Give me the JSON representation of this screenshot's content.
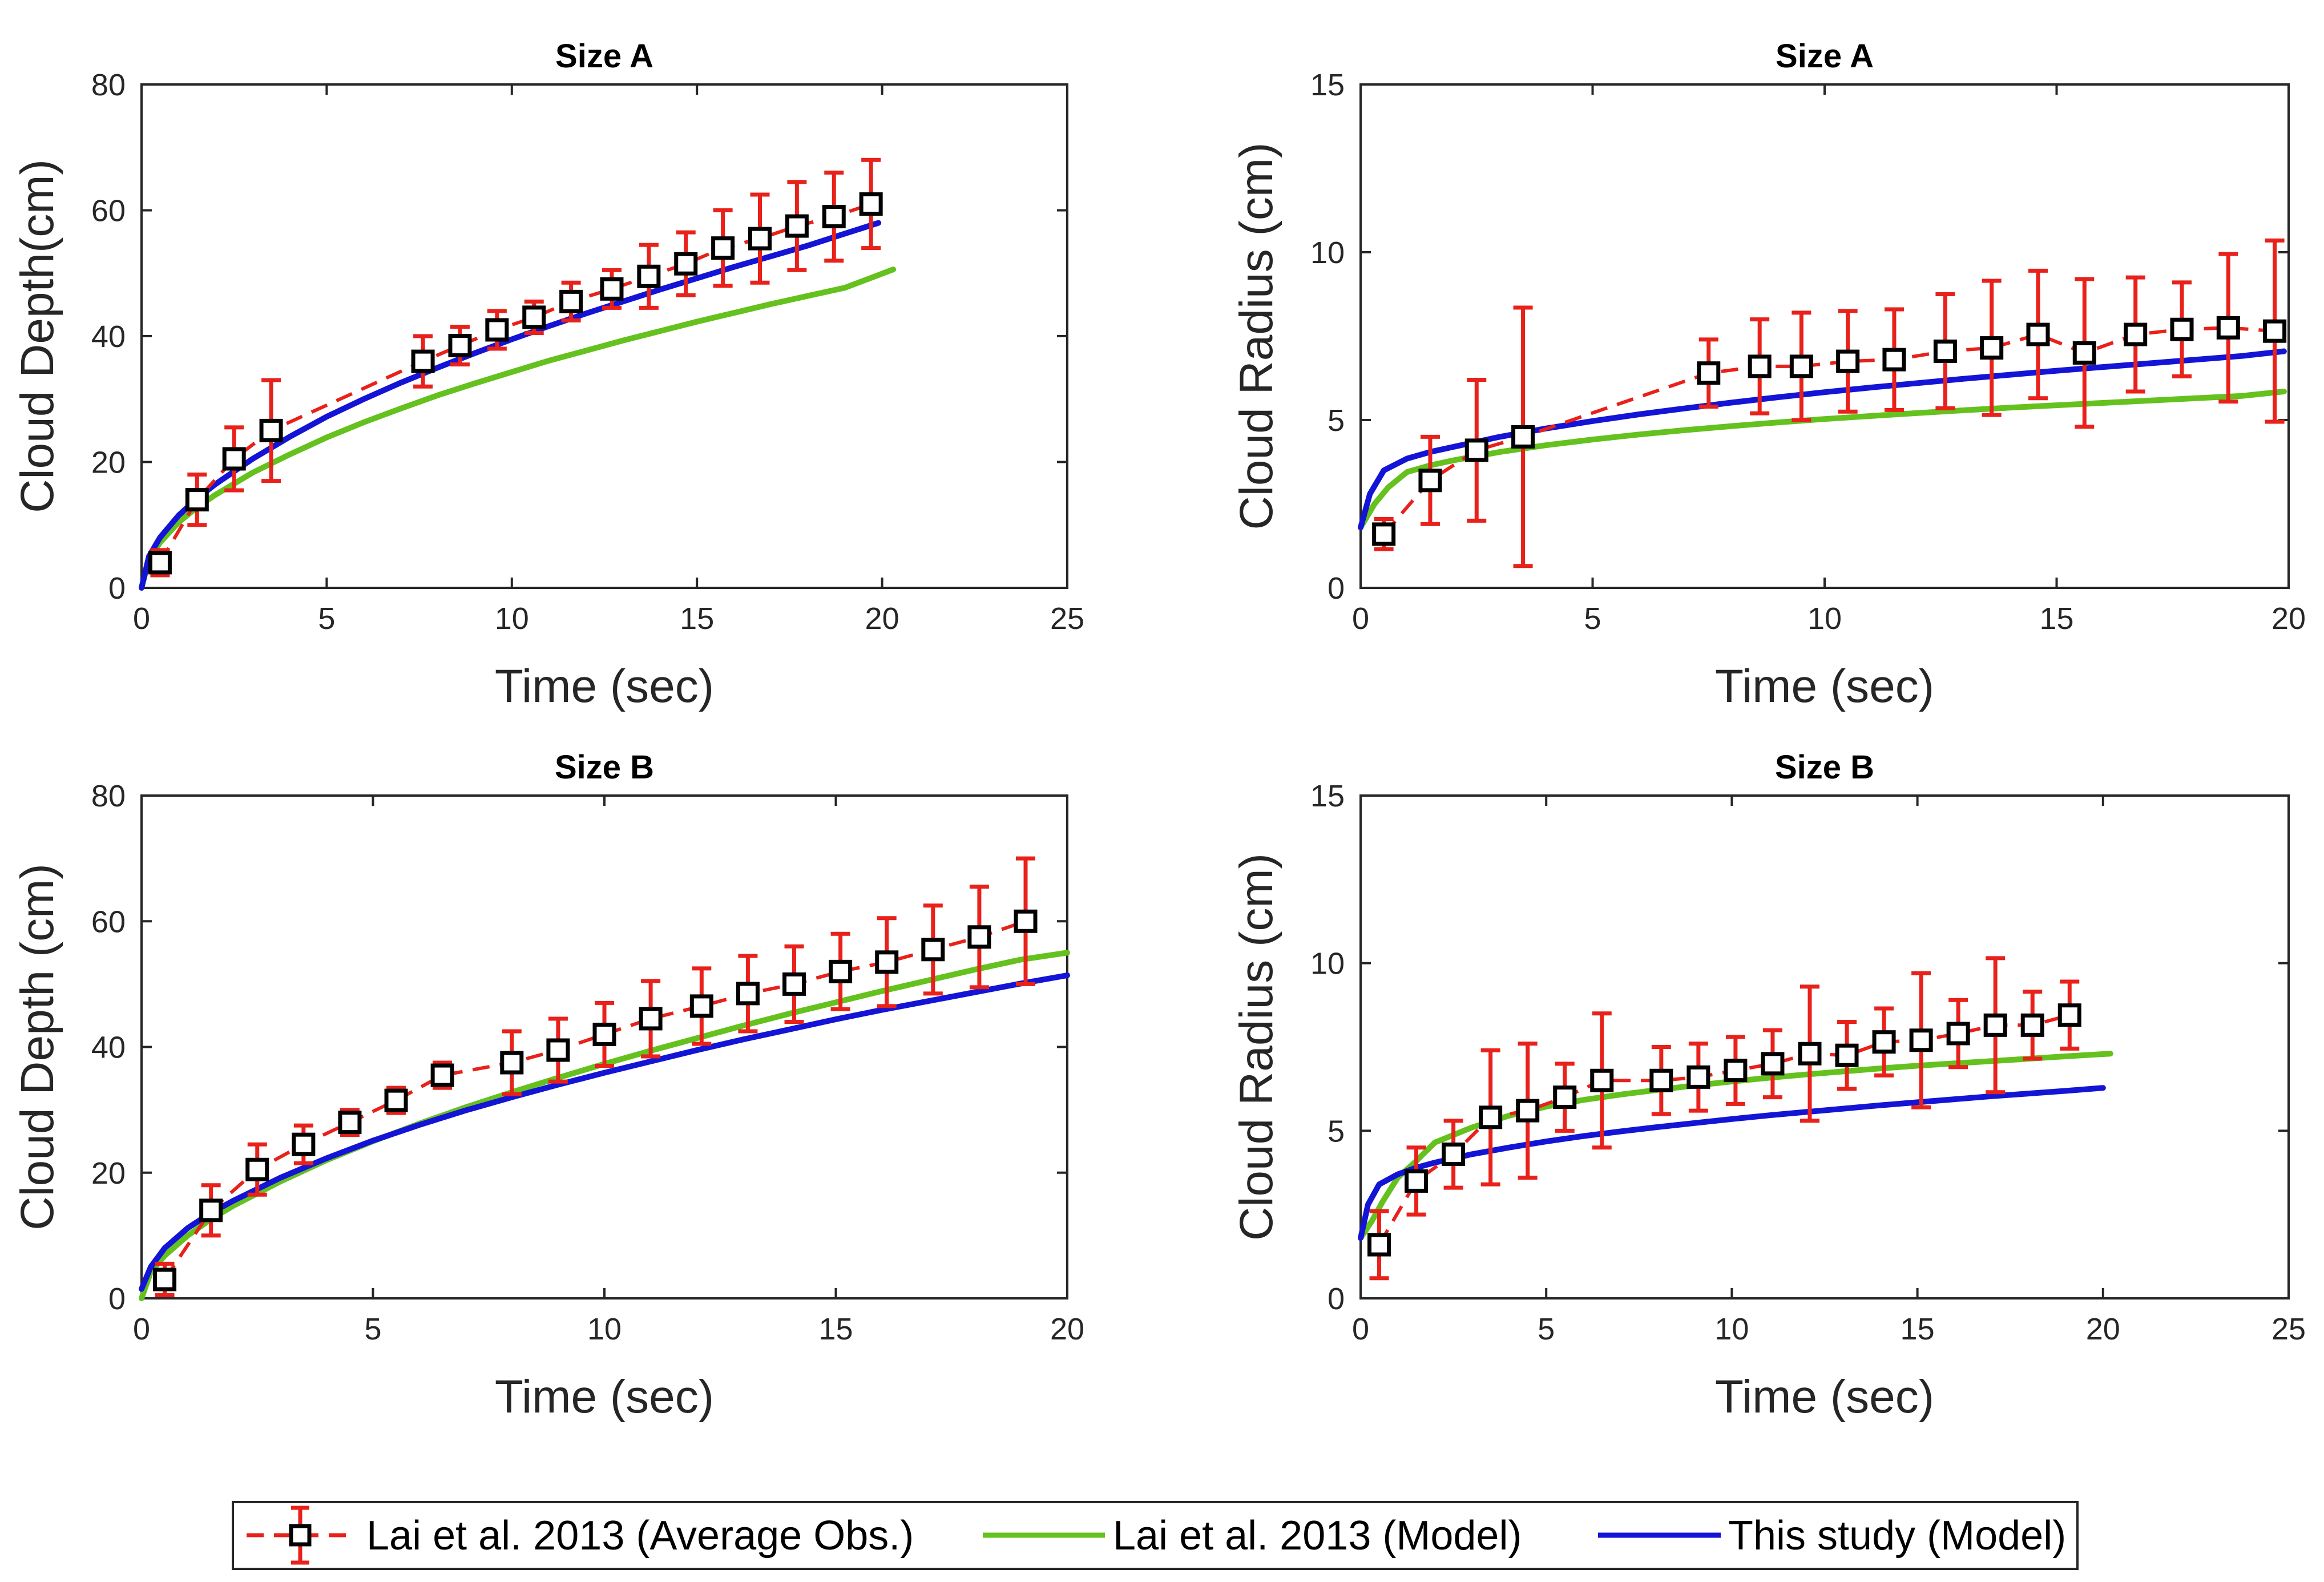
{
  "legend": {
    "obs_label": "Lai et al. 2013 (Average Obs.)",
    "lai_model_label": "Lai et al. 2013 (Model)",
    "this_model_label": "This study (Model)"
  },
  "colors": {
    "obs": "#e8211a",
    "obs_marker": "#000000",
    "lai_model": "#65c11e",
    "this_model": "#1414d6"
  },
  "chart_data": [
    {
      "type": "line",
      "title": "Size A",
      "xlabel": "Time (sec)",
      "ylabel": "Cloud Depth(cm)",
      "xlim": [
        0,
        25
      ],
      "ylim": [
        0,
        80
      ],
      "xticks": [
        "0",
        "5",
        "10",
        "15",
        "20",
        "25"
      ],
      "yticks": [
        "0",
        "20",
        "40",
        "60",
        "80"
      ],
      "series": [
        {
          "name": "Lai et al. 2013 (Average Obs.)",
          "x": [
            0.5,
            1.5,
            2.5,
            3.5,
            7.6,
            8.6,
            9.6,
            10.6,
            11.6,
            12.7,
            13.7,
            14.7,
            15.7,
            16.7,
            17.7,
            18.7,
            19.7
          ],
          "y": [
            4,
            14,
            20.5,
            25,
            36,
            38.5,
            41,
            43,
            45.5,
            47.5,
            49.5,
            51.5,
            54,
            55.5,
            57.5,
            59,
            61
          ],
          "err": [
            2,
            4,
            5,
            8,
            4,
            3,
            3,
            2.5,
            3,
            3,
            5,
            5,
            6,
            7,
            7,
            7,
            7
          ]
        },
        {
          "name": "Lai et al. 2013 (Model)",
          "x": [
            0,
            0.2,
            0.5,
            1,
            1.5,
            2,
            3,
            4,
            5,
            6,
            7,
            8,
            9,
            10,
            11,
            12,
            13,
            14,
            15,
            16,
            17,
            18,
            19,
            20.3
          ],
          "y": [
            0,
            4.5,
            7.2,
            10.4,
            12.8,
            14.8,
            18.3,
            21.2,
            23.9,
            26.3,
            28.5,
            30.6,
            32.5,
            34.3,
            36.1,
            37.7,
            39.3,
            40.8,
            42.3,
            43.7,
            45.1,
            46.4,
            47.7,
            50.6
          ]
        },
        {
          "name": "This study (Model)",
          "x": [
            0,
            0.2,
            0.5,
            1,
            1.5,
            2,
            3,
            4,
            5,
            6,
            7,
            8,
            9,
            10,
            11,
            12,
            13,
            14,
            15,
            16,
            17,
            18,
            19,
            19.9
          ],
          "y": [
            0,
            5,
            8,
            11.5,
            14.2,
            16.5,
            20.5,
            24,
            27.2,
            30,
            32.6,
            35,
            37.3,
            39.5,
            41.6,
            43.6,
            45.5,
            47.4,
            49.2,
            51,
            52.7,
            54.4,
            56.3,
            58
          ]
        }
      ]
    },
    {
      "type": "line",
      "title": "Size A",
      "xlabel": "Time (sec)",
      "ylabel": "Cloud Radius (cm)",
      "xlim": [
        0,
        20
      ],
      "ylim": [
        0,
        15
      ],
      "xticks": [
        "0",
        "5",
        "10",
        "15",
        "20"
      ],
      "yticks": [
        "0",
        "5",
        "10",
        "15"
      ],
      "series": [
        {
          "name": "Lai et al. 2013 (Average Obs.)",
          "x": [
            0.5,
            1.5,
            2.5,
            3.5,
            7.5,
            8.6,
            9.5,
            10.5,
            11.5,
            12.6,
            13.6,
            14.6,
            15.6,
            16.7,
            17.7,
            18.7,
            19.7
          ],
          "y": [
            1.6,
            3.2,
            4.1,
            4.5,
            6.4,
            6.6,
            6.6,
            6.75,
            6.8,
            7.05,
            7.15,
            7.55,
            7.0,
            7.55,
            7.7,
            7.75,
            7.65
          ],
          "err": [
            0.45,
            1.3,
            2.1,
            3.85,
            1.0,
            1.4,
            1.6,
            1.5,
            1.5,
            1.7,
            2.0,
            1.9,
            2.2,
            1.7,
            1.4,
            2.2,
            2.7
          ]
        },
        {
          "name": "Lai et al. 2013 (Model)",
          "x": [
            0,
            0.3,
            0.6,
            1,
            1.5,
            2,
            3,
            4,
            5,
            6,
            7,
            8,
            9,
            10,
            11,
            12,
            13,
            14,
            15,
            16,
            17,
            18,
            19,
            19.9
          ],
          "y": [
            1.8,
            2.5,
            3.0,
            3.45,
            3.65,
            3.8,
            4.05,
            4.25,
            4.42,
            4.57,
            4.7,
            4.82,
            4.93,
            5.03,
            5.12,
            5.21,
            5.29,
            5.37,
            5.44,
            5.51,
            5.58,
            5.65,
            5.72,
            5.85
          ]
        },
        {
          "name": "This study (Model)",
          "x": [
            0,
            0.2,
            0.5,
            1,
            1.5,
            2,
            3,
            4,
            5,
            6,
            7,
            8,
            9,
            10,
            11,
            12,
            13,
            14,
            15,
            16,
            17,
            18,
            19,
            19.9
          ],
          "y": [
            1.8,
            2.8,
            3.5,
            3.85,
            4.05,
            4.2,
            4.5,
            4.75,
            4.97,
            5.17,
            5.35,
            5.52,
            5.68,
            5.83,
            5.97,
            6.1,
            6.23,
            6.35,
            6.47,
            6.58,
            6.69,
            6.8,
            6.91,
            7.05
          ]
        }
      ]
    },
    {
      "type": "line",
      "title": "Size B",
      "xlabel": "Time (sec)",
      "ylabel": "Cloud Depth (cm)",
      "xlim": [
        0,
        20
      ],
      "ylim": [
        0,
        80
      ],
      "xticks": [
        "0",
        "5",
        "10",
        "15",
        "20"
      ],
      "yticks": [
        "0",
        "20",
        "40",
        "60",
        "80"
      ],
      "series": [
        {
          "name": "Lai et al. 2013 (Average Obs.)",
          "x": [
            0.5,
            1.5,
            2.5,
            3.5,
            4.5,
            5.5,
            6.5,
            8.0,
            9.0,
            10.0,
            11.0,
            12.1,
            13.1,
            14.1,
            15.1,
            16.1,
            17.1,
            18.1,
            19.1
          ],
          "y": [
            3,
            14,
            20.5,
            24.5,
            28,
            31.5,
            35.5,
            37.5,
            39.5,
            42,
            44.5,
            46.5,
            48.5,
            50,
            52,
            53.5,
            55.5,
            57.5,
            60
          ],
          "err": [
            2.5,
            4,
            4,
            3,
            2,
            2,
            2,
            5,
            5,
            5,
            6,
            6,
            6,
            6,
            6,
            7,
            7,
            8,
            10
          ]
        },
        {
          "name": "Lai et al. 2013 (Model)",
          "x": [
            0,
            0.2,
            0.5,
            1,
            1.5,
            2,
            3,
            4,
            5,
            6,
            7,
            8,
            9,
            10,
            11,
            12,
            13,
            14,
            15,
            16,
            17,
            18,
            19,
            20
          ],
          "y": [
            0,
            4.2,
            6.8,
            10,
            12.6,
            14.8,
            18.6,
            22,
            25,
            27.8,
            30.4,
            32.8,
            35.1,
            37.3,
            39.4,
            41.4,
            43.4,
            45.3,
            47.1,
            48.9,
            50.6,
            52.3,
            53.9,
            55
          ]
        },
        {
          "name": "This study (Model)",
          "x": [
            0,
            0.2,
            0.5,
            1,
            1.5,
            2,
            3,
            4,
            5,
            6,
            7,
            8,
            9,
            10,
            11,
            12,
            13,
            14,
            15,
            16,
            17,
            18,
            19,
            20
          ],
          "y": [
            1.5,
            5,
            8,
            11.2,
            13.6,
            15.6,
            19.2,
            22.3,
            25.1,
            27.6,
            29.9,
            32,
            34,
            35.9,
            37.7,
            39.5,
            41.2,
            42.8,
            44.4,
            45.9,
            47.3,
            48.7,
            50.1,
            51.4
          ]
        }
      ]
    },
    {
      "type": "line",
      "title": "Size B",
      "xlabel": "Time (sec)",
      "ylabel": "Cloud Radius (cm)",
      "xlim": [
        0,
        25
      ],
      "ylim": [
        0,
        15
      ],
      "xticks": [
        "0",
        "5",
        "10",
        "15",
        "20",
        "25"
      ],
      "yticks": [
        "0",
        "5",
        "10",
        "15"
      ],
      "series": [
        {
          "name": "Lai et al. 2013 (Average Obs.)",
          "x": [
            0.5,
            1.5,
            2.5,
            3.5,
            4.5,
            5.5,
            6.5,
            8.1,
            9.1,
            10.1,
            11.1,
            12.1,
            13.1,
            14.1,
            15.1,
            16.1,
            17.1,
            18.1,
            19.1
          ],
          "y": [
            1.6,
            3.5,
            4.3,
            5.4,
            5.6,
            6.0,
            6.5,
            6.5,
            6.6,
            6.8,
            7.0,
            7.3,
            7.25,
            7.65,
            7.7,
            7.9,
            8.15,
            8.15,
            8.45
          ],
          "err": [
            1.0,
            1.0,
            1.0,
            2.0,
            2.0,
            1.0,
            2.0,
            1.0,
            1.0,
            1.0,
            1.0,
            2.0,
            1.0,
            1.0,
            2.0,
            1.0,
            2.0,
            1.0,
            1.0
          ]
        },
        {
          "name": "Lai et al. 2013 (Model)",
          "x": [
            0,
            0.3,
            0.6,
            1,
            1.5,
            2,
            3,
            4,
            5,
            6,
            7,
            8,
            9,
            10,
            11,
            12,
            13,
            14,
            15,
            16,
            17,
            18,
            19,
            20.2
          ],
          "y": [
            1.8,
            2.3,
            2.9,
            3.6,
            4.1,
            4.65,
            5.1,
            5.45,
            5.72,
            5.92,
            6.08,
            6.22,
            6.35,
            6.47,
            6.58,
            6.68,
            6.77,
            6.86,
            6.94,
            7.01,
            7.08,
            7.15,
            7.22,
            7.3
          ]
        },
        {
          "name": "This study (Model)",
          "x": [
            0,
            0.2,
            0.5,
            1,
            1.5,
            2,
            3,
            4,
            5,
            6,
            7,
            8,
            9,
            10,
            11,
            12,
            13,
            14,
            15,
            16,
            17,
            18,
            19,
            20
          ],
          "y": [
            1.8,
            2.8,
            3.4,
            3.7,
            3.9,
            4.05,
            4.3,
            4.5,
            4.68,
            4.84,
            4.98,
            5.11,
            5.23,
            5.35,
            5.46,
            5.56,
            5.66,
            5.76,
            5.85,
            5.94,
            6.03,
            6.11,
            6.19,
            6.28
          ]
        }
      ]
    }
  ]
}
